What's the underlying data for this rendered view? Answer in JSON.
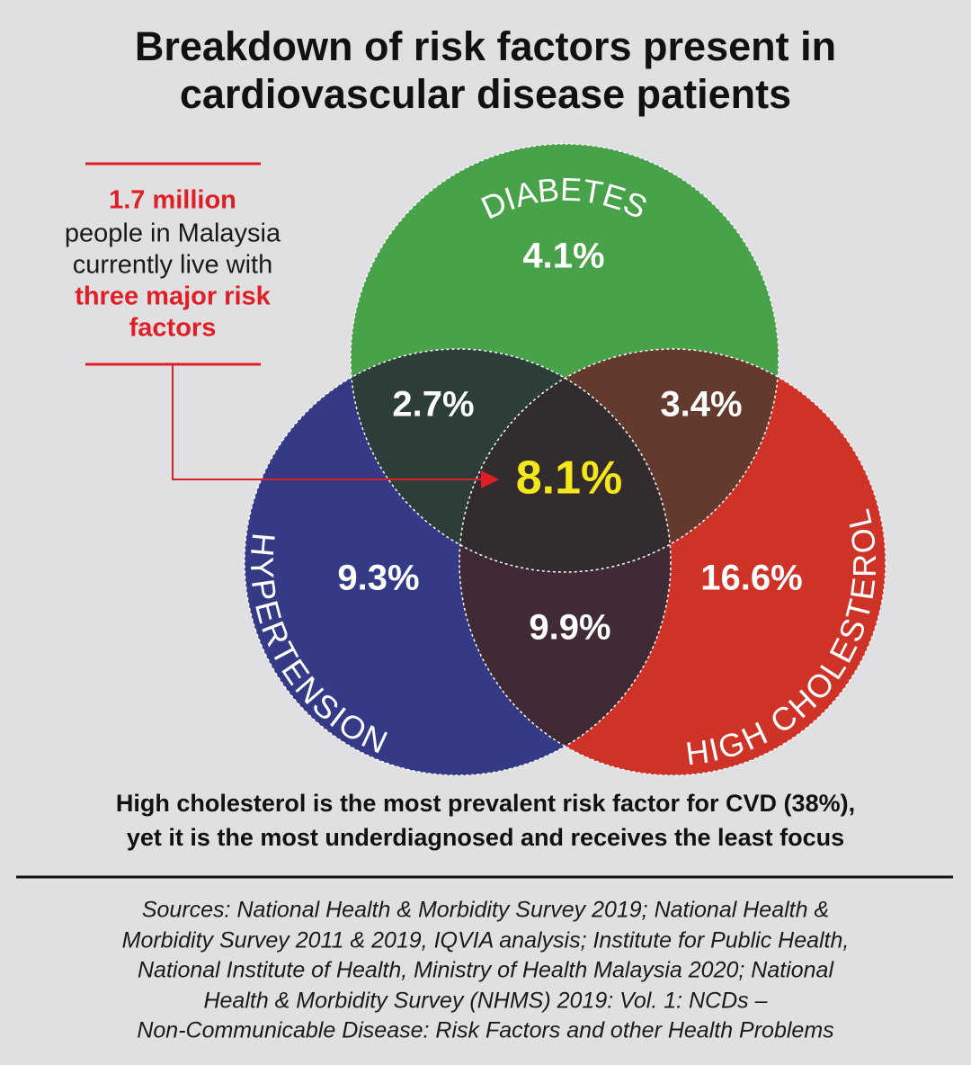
{
  "header": {
    "title": [
      "Breakdown of risk factors present in",
      "cardiovascular disease patients"
    ]
  },
  "callout": {
    "lines": [
      "1.7 million",
      "people in Malaysia",
      "currently live with",
      "three major risk",
      "factors"
    ]
  },
  "sets": {
    "diabetes": "DIABETES",
    "hypertension": "HYPERTENSION",
    "cholesterol": "HIGH CHOLESTEROL"
  },
  "regions": {
    "diabetes_only": "4.1%",
    "diabetes_hypertension": "2.7%",
    "diabetes_cholesterol": "3.4%",
    "all_three": "8.1%",
    "hypertension_only": "9.3%",
    "hypertension_cholesterol": "9.9%",
    "cholesterol_only": "16.6%"
  },
  "statement": [
    "High cholesterol is the most prevalent risk factor for CVD (38%),",
    "yet it is the most underdiagnosed and receives the least focus"
  ],
  "sources": [
    "Sources: National Health & Morbidity Survey 2019; National Health &",
    "Morbidity Survey 2011 & 2019, IQVIA analysis; Institute for Public Health,",
    "National Institute of Health, Ministry of Health Malaysia 2020; National",
    "Health & Morbidity Survey (NHMS) 2019: Vol. 1: NCDs –",
    "Non-Communicable Disease: Risk Factors and other Health Problems"
  ]
}
